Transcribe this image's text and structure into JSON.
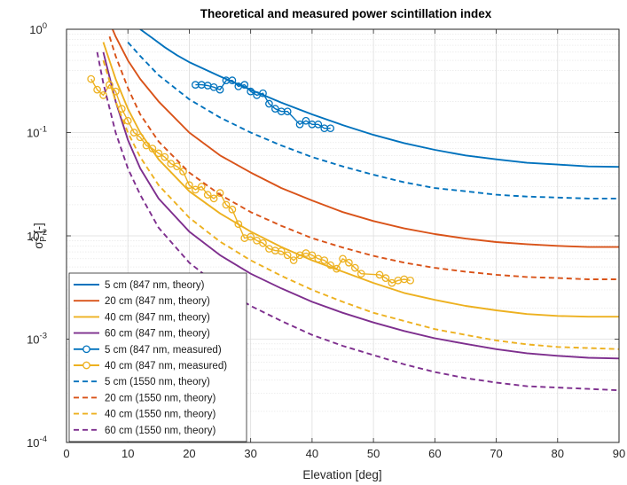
{
  "chart_data": {
    "type": "line",
    "title": "Theoretical and measured power scintillation index",
    "xlabel": "Elevation [deg]",
    "ylabel": "σ",
    "ylabel_sup": "2",
    "ylabel_sub": "P",
    "ylabel_unit": "[-]",
    "xlim": [
      0,
      90
    ],
    "ylim": [
      0.0001,
      1
    ],
    "yscale": "log",
    "grid": true,
    "minor_grid": true,
    "legend_position": "bottom-left",
    "x_ticks": [
      0,
      10,
      20,
      30,
      40,
      50,
      60,
      70,
      80,
      90
    ],
    "y_ticks": [
      {
        "value": 1,
        "base": "10",
        "exp": "0"
      },
      {
        "value": 0.1,
        "base": "10",
        "exp": "-1"
      },
      {
        "value": 0.01,
        "base": "10",
        "exp": "-2"
      },
      {
        "value": 0.001,
        "base": "10",
        "exp": "-3"
      },
      {
        "value": 0.0001,
        "base": "10",
        "exp": "-4"
      }
    ],
    "series": [
      {
        "name": "5 cm (847 nm, theory)",
        "color": "#0072BD",
        "style": "solid",
        "marker": "none",
        "x": [
          12,
          14,
          16,
          18,
          20,
          25,
          30,
          35,
          40,
          45,
          50,
          55,
          60,
          65,
          70,
          75,
          80,
          85,
          90
        ],
        "y": [
          1.0,
          0.82,
          0.67,
          0.56,
          0.48,
          0.35,
          0.26,
          0.195,
          0.15,
          0.118,
          0.095,
          0.079,
          0.068,
          0.06,
          0.055,
          0.051,
          0.049,
          0.047,
          0.0465
        ]
      },
      {
        "name": "20 cm (847 nm, theory)",
        "color": "#D95319",
        "style": "solid",
        "marker": "none",
        "x": [
          7.5,
          8,
          10,
          12,
          15,
          20,
          25,
          30,
          35,
          40,
          45,
          50,
          55,
          60,
          65,
          70,
          75,
          80,
          85,
          90
        ],
        "y": [
          1.0,
          0.85,
          0.5,
          0.33,
          0.2,
          0.1,
          0.06,
          0.041,
          0.029,
          0.022,
          0.017,
          0.0139,
          0.0118,
          0.0104,
          0.0094,
          0.0087,
          0.0083,
          0.008,
          0.0078,
          0.0078
        ]
      },
      {
        "name": "40 cm (847 nm, theory)",
        "color": "#EDB120",
        "style": "solid",
        "marker": "none",
        "x": [
          6,
          8,
          10,
          12,
          15,
          20,
          25,
          30,
          35,
          40,
          45,
          50,
          55,
          60,
          65,
          70,
          75,
          80,
          85,
          90
        ],
        "y": [
          0.75,
          0.33,
          0.17,
          0.1,
          0.055,
          0.027,
          0.0165,
          0.011,
          0.0078,
          0.0058,
          0.0045,
          0.0035,
          0.0028,
          0.0024,
          0.0021,
          0.0019,
          0.00175,
          0.00168,
          0.00165,
          0.00165
        ]
      },
      {
        "name": "60 cm (847 nm, theory)",
        "color": "#7E2F8E",
        "style": "solid",
        "marker": "none",
        "x": [
          6,
          8,
          10,
          12,
          15,
          20,
          25,
          30,
          35,
          40,
          45,
          50,
          55,
          60,
          65,
          70,
          75,
          80,
          85,
          90
        ],
        "y": [
          0.6,
          0.2,
          0.085,
          0.045,
          0.023,
          0.011,
          0.0065,
          0.0043,
          0.0031,
          0.0023,
          0.0018,
          0.00145,
          0.0012,
          0.00102,
          0.0009,
          0.0008,
          0.00073,
          0.00069,
          0.00066,
          0.00065
        ]
      },
      {
        "name": "5 cm (847 nm, measured)",
        "color": "#0072BD",
        "style": "solid",
        "marker": "circle",
        "x": [
          21,
          22,
          23,
          24,
          25,
          26,
          27,
          28,
          29,
          30,
          31,
          32,
          33,
          34,
          35,
          36,
          38,
          39,
          40,
          41,
          42,
          43
        ],
        "y": [
          0.29,
          0.29,
          0.285,
          0.275,
          0.26,
          0.32,
          0.32,
          0.28,
          0.29,
          0.25,
          0.23,
          0.24,
          0.19,
          0.17,
          0.16,
          0.16,
          0.12,
          0.13,
          0.12,
          0.12,
          0.11,
          0.11
        ]
      },
      {
        "name": "40 cm (847 nm, measured)",
        "color": "#EDB120",
        "style": "solid",
        "marker": "circle",
        "x": [
          4,
          5,
          6,
          7,
          8,
          9,
          10,
          11,
          12,
          13,
          14,
          15,
          16,
          17,
          18,
          19,
          20,
          21,
          22,
          23,
          24,
          25,
          26,
          27,
          28,
          29,
          30,
          31,
          32,
          33,
          34,
          35,
          36,
          37,
          38,
          39,
          40,
          41,
          42,
          43,
          44,
          45,
          46,
          47,
          48,
          51,
          52,
          53,
          54,
          55,
          56
        ],
        "y": [
          0.33,
          0.26,
          0.23,
          0.29,
          0.25,
          0.17,
          0.13,
          0.1,
          0.09,
          0.075,
          0.07,
          0.063,
          0.058,
          0.05,
          0.047,
          0.042,
          0.031,
          0.028,
          0.03,
          0.025,
          0.023,
          0.026,
          0.02,
          0.018,
          0.013,
          0.0095,
          0.0098,
          0.009,
          0.0085,
          0.0075,
          0.0072,
          0.0071,
          0.0065,
          0.0058,
          0.0065,
          0.0068,
          0.0065,
          0.006,
          0.0058,
          0.0052,
          0.0048,
          0.006,
          0.0055,
          0.0049,
          0.0043,
          0.0042,
          0.0039,
          0.0035,
          0.0037,
          0.0038,
          0.0037
        ]
      },
      {
        "name": "5 cm (1550 nm, theory)",
        "color": "#0072BD",
        "style": "dashed",
        "marker": "none",
        "x": [
          10,
          12,
          15,
          20,
          25,
          30,
          35,
          40,
          45,
          50,
          55,
          60,
          65,
          70,
          75,
          80,
          85,
          90
        ],
        "y": [
          0.75,
          0.55,
          0.36,
          0.21,
          0.14,
          0.1,
          0.075,
          0.058,
          0.047,
          0.039,
          0.033,
          0.029,
          0.027,
          0.025,
          0.024,
          0.0235,
          0.023,
          0.023
        ]
      },
      {
        "name": "20 cm (1550 nm, theory)",
        "color": "#D95319",
        "style": "dashed",
        "marker": "none",
        "x": [
          7,
          8,
          10,
          12,
          15,
          20,
          25,
          30,
          35,
          40,
          45,
          50,
          55,
          60,
          65,
          70,
          75,
          80,
          85,
          90
        ],
        "y": [
          0.85,
          0.55,
          0.27,
          0.15,
          0.082,
          0.041,
          0.025,
          0.017,
          0.0125,
          0.0095,
          0.0077,
          0.0064,
          0.0055,
          0.0049,
          0.0045,
          0.0042,
          0.004,
          0.0039,
          0.0038,
          0.0038
        ]
      },
      {
        "name": "40 cm (1550 nm, theory)",
        "color": "#EDB120",
        "style": "dashed",
        "marker": "none",
        "x": [
          6,
          8,
          10,
          12,
          15,
          20,
          25,
          30,
          35,
          40,
          45,
          50,
          55,
          60,
          65,
          70,
          75,
          80,
          85,
          90
        ],
        "y": [
          0.5,
          0.2,
          0.1,
          0.058,
          0.031,
          0.015,
          0.0088,
          0.0058,
          0.0041,
          0.003,
          0.0023,
          0.0018,
          0.0015,
          0.00125,
          0.0011,
          0.00097,
          0.00089,
          0.00084,
          0.00082,
          0.0008
        ]
      },
      {
        "name": "60 cm (1550 nm, theory)",
        "color": "#7E2F8E",
        "style": "dashed",
        "marker": "none",
        "x": [
          5,
          6,
          8,
          10,
          12,
          15,
          20,
          25,
          30,
          35,
          40,
          45,
          50,
          55,
          60,
          65,
          70,
          75,
          80,
          85,
          90
        ],
        "y": [
          0.6,
          0.3,
          0.1,
          0.045,
          0.025,
          0.012,
          0.0055,
          0.0032,
          0.0021,
          0.0015,
          0.0011,
          0.00086,
          0.0007,
          0.00057,
          0.00048,
          0.00042,
          0.00038,
          0.00035,
          0.00034,
          0.00033,
          0.00032
        ]
      }
    ]
  }
}
